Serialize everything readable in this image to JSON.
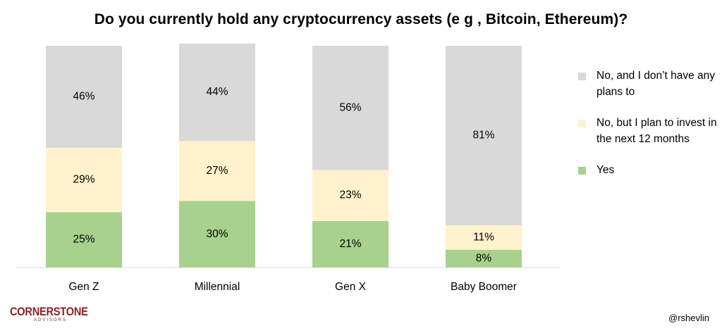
{
  "chart_data": {
    "type": "bar",
    "stacked": true,
    "title": "Do you currently hold any cryptocurrency assets (e g , Bitcoin, Ethereum)?",
    "categories": [
      "Gen Z",
      "Millennial",
      "Gen X",
      "Baby Boomer"
    ],
    "series": [
      {
        "name": "Yes",
        "values": [
          25,
          30,
          21,
          8
        ],
        "color": "#a9d18e"
      },
      {
        "name": "No, but I plan to invest in the next 12 months",
        "values": [
          29,
          27,
          23,
          11
        ],
        "color": "#fff2cc"
      },
      {
        "name": "No, and I don’t have any plans to",
        "values": [
          46,
          44,
          56,
          81
        ],
        "color": "#d9d9d9"
      }
    ],
    "value_suffix": "%",
    "ylim": [
      0,
      100
    ],
    "grid": false,
    "legend_position": "right"
  },
  "legend": [
    {
      "label": "No, and I don’t have any plans to",
      "color": "#d9d9d9"
    },
    {
      "label": "No, but I plan to invest in the next 12 months",
      "color": "#fff2cc"
    },
    {
      "label": "Yes",
      "color": "#a9d18e"
    }
  ],
  "logo": {
    "name": "CORNERSTONE",
    "sub": "ADVISORS",
    "color": "#8b2323"
  },
  "handle": "@rshevlin"
}
